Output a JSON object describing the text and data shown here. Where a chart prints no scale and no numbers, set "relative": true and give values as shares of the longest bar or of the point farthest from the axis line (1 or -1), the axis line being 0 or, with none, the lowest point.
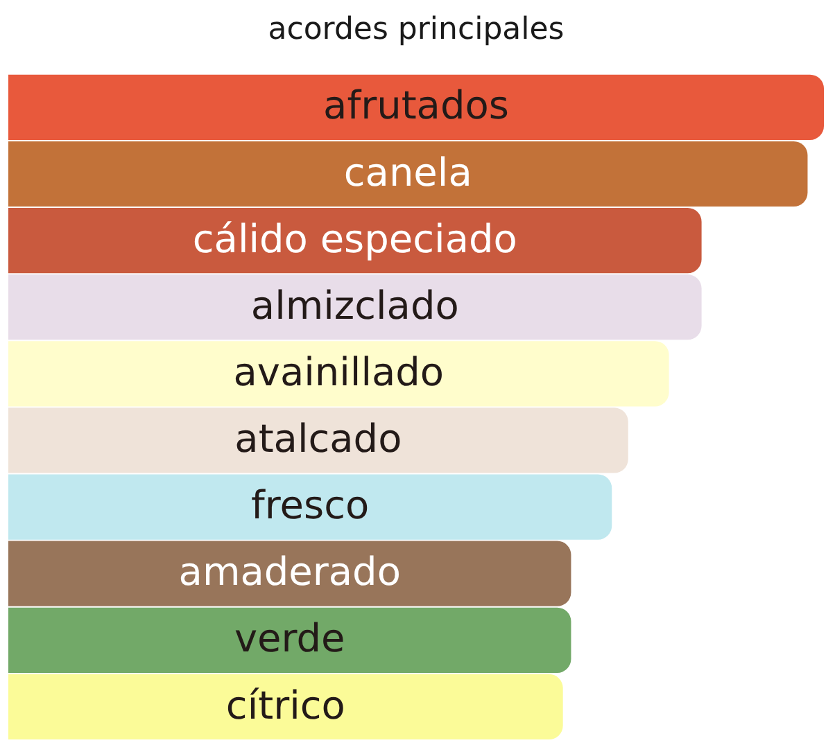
{
  "chart_data": {
    "type": "bar",
    "orientation": "horizontal",
    "relative": true,
    "title": "acordes principales",
    "categories": [
      "afrutados",
      "canela",
      "cálido especiado",
      "almizclado",
      "avainillado",
      "atalcado",
      "fresco",
      "amaderado",
      "verde",
      "cítrico"
    ],
    "values": [
      1,
      0.98,
      0.85,
      0.85,
      0.81,
      0.76,
      0.74,
      0.69,
      0.69,
      0.68
    ],
    "colors": [
      "#e8593c",
      "#c27239",
      "#c95a3e",
      "#e8dde9",
      "#fffdcc",
      "#efe3d9",
      "#c0e8ef",
      "#98755a",
      "#72a968",
      "#fbfb98"
    ]
  }
}
